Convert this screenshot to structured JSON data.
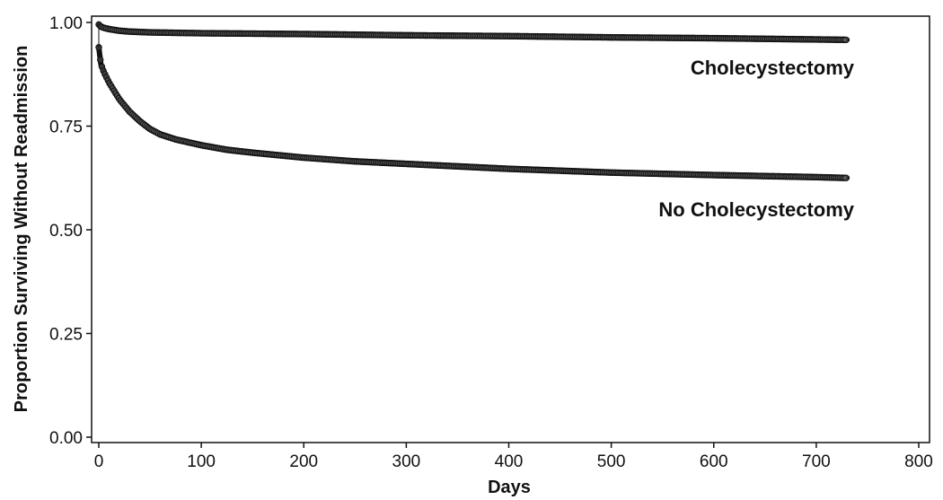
{
  "chart_data": {
    "type": "line",
    "title": "",
    "xlabel": "Days",
    "ylabel": "Proportion Surviving Without Readmission",
    "xlim": [
      0,
      800
    ],
    "ylim": [
      0,
      1
    ],
    "x_ticks": [
      "0",
      "100",
      "200",
      "300",
      "400",
      "500",
      "600",
      "700",
      "800"
    ],
    "y_ticks": [
      "0.00",
      "0.25",
      "0.50",
      "0.75",
      "1.00"
    ],
    "grid": false,
    "legend": "none",
    "series": [
      {
        "name": "Cholecystectomy",
        "color": "#111111",
        "x": [
          0,
          2,
          5,
          10,
          15,
          20,
          30,
          40,
          50,
          75,
          100,
          200,
          300,
          400,
          500,
          600,
          700,
          730
        ],
        "y": [
          0.995,
          0.99,
          0.987,
          0.984,
          0.982,
          0.98,
          0.978,
          0.977,
          0.976,
          0.975,
          0.974,
          0.972,
          0.969,
          0.967,
          0.964,
          0.962,
          0.959,
          0.958
        ]
      },
      {
        "name": "No Cholecystectomy",
        "color": "#111111",
        "x": [
          0,
          2,
          5,
          10,
          15,
          20,
          30,
          40,
          50,
          60,
          75,
          100,
          125,
          150,
          200,
          250,
          300,
          400,
          500,
          600,
          700,
          730
        ],
        "y": [
          0.94,
          0.9,
          0.88,
          0.855,
          0.835,
          0.815,
          0.785,
          0.762,
          0.743,
          0.73,
          0.718,
          0.704,
          0.693,
          0.686,
          0.674,
          0.665,
          0.659,
          0.647,
          0.638,
          0.632,
          0.627,
          0.625
        ]
      }
    ]
  }
}
